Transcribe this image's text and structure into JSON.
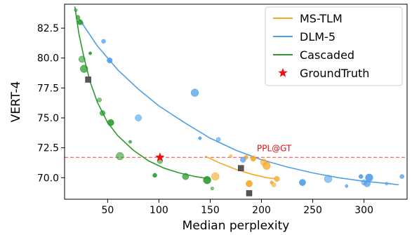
{
  "chart_data": {
    "type": "scatter",
    "title": "",
    "xlabel": "Median perplexity",
    "ylabel": "VERT-4",
    "xlim": [
      8,
      342
    ],
    "ylim": [
      68.2,
      84.5
    ],
    "xticks": [
      50,
      100,
      150,
      200,
      250,
      300
    ],
    "yticks": [
      70.0,
      72.5,
      75.0,
      77.5,
      80.0,
      82.5
    ],
    "ytick_labels": [
      "70.0",
      "72.5",
      "75.0",
      "77.5",
      "80.0",
      "82.5"
    ],
    "grid": false,
    "legend_placement": "top-right",
    "reference_line": {
      "y": 71.7,
      "label": "PPL@GT",
      "color": "#ff5555"
    },
    "series": [
      {
        "name": "MS-TLM",
        "color": "#f5a623",
        "points": [
          [
            170,
            71.8
          ],
          [
            185,
            71.7
          ],
          [
            192,
            71.6
          ],
          [
            202,
            71.3
          ],
          [
            205,
            71.0
          ],
          [
            210,
            69.6
          ],
          [
            212,
            69.4
          ],
          [
            215,
            69.9
          ],
          [
            188,
            69.5
          ],
          [
            155,
            70.1
          ]
        ],
        "fit": [
          [
            145,
            71.8
          ],
          [
            160,
            71.2
          ],
          [
            175,
            70.7
          ],
          [
            190,
            70.3
          ],
          [
            205,
            70.0
          ],
          [
            215,
            69.9
          ]
        ],
        "box": [
          188,
          68.7
        ]
      },
      {
        "name": "DLM-5",
        "color": "#4f9fe8",
        "points": [
          [
            25,
            82.9
          ],
          [
            46,
            81.4
          ],
          [
            52,
            79.8
          ],
          [
            80,
            75.0
          ],
          [
            135,
            77.1
          ],
          [
            140,
            73.3
          ],
          [
            158,
            73.2
          ],
          [
            182,
            71.5
          ],
          [
            240,
            69.6
          ],
          [
            265,
            69.9
          ],
          [
            283,
            69.3
          ],
          [
            297,
            70.1
          ],
          [
            300,
            69.6
          ],
          [
            303,
            69.5
          ],
          [
            305,
            70.0
          ],
          [
            322,
            69.5
          ],
          [
            337,
            70.1
          ]
        ],
        "fit": [
          [
            22,
            83.3
          ],
          [
            40,
            81.0
          ],
          [
            60,
            79.0
          ],
          [
            80,
            77.4
          ],
          [
            100,
            76.0
          ],
          [
            125,
            74.6
          ],
          [
            150,
            73.3
          ],
          [
            175,
            72.3
          ],
          [
            200,
            71.5
          ],
          [
            225,
            70.9
          ],
          [
            250,
            70.4
          ],
          [
            275,
            70.0
          ],
          [
            300,
            69.7
          ],
          [
            325,
            69.5
          ],
          [
            334,
            69.4
          ]
        ],
        "box": [
          180,
          70.8
        ]
      },
      {
        "name": "Cascaded",
        "color": "#2e9a2e",
        "points": [
          [
            19,
            84.0
          ],
          [
            21,
            83.4
          ],
          [
            23,
            83.0
          ],
          [
            25,
            79.9
          ],
          [
            27,
            79.1
          ],
          [
            33,
            80.4
          ],
          [
            42,
            76.5
          ],
          [
            45,
            75.4
          ],
          [
            53,
            74.6
          ],
          [
            62,
            71.8
          ],
          [
            72,
            73.0
          ],
          [
            96,
            70.2
          ],
          [
            101,
            71.4
          ],
          [
            126,
            70.1
          ],
          [
            147,
            69.8
          ],
          [
            152,
            69.1
          ]
        ],
        "fit": [
          [
            18,
            84.3
          ],
          [
            22,
            82.0
          ],
          [
            27,
            80.0
          ],
          [
            33,
            78.0
          ],
          [
            40,
            76.3
          ],
          [
            50,
            74.6
          ],
          [
            60,
            73.5
          ],
          [
            75,
            72.3
          ],
          [
            90,
            71.4
          ],
          [
            105,
            70.8
          ],
          [
            120,
            70.4
          ],
          [
            135,
            70.1
          ],
          [
            150,
            69.9
          ]
        ],
        "box": [
          31,
          78.2
        ]
      },
      {
        "name": "GroundTruth",
        "color": "#ee1111",
        "marker": "star",
        "points": [
          [
            101,
            71.7
          ]
        ]
      }
    ]
  }
}
